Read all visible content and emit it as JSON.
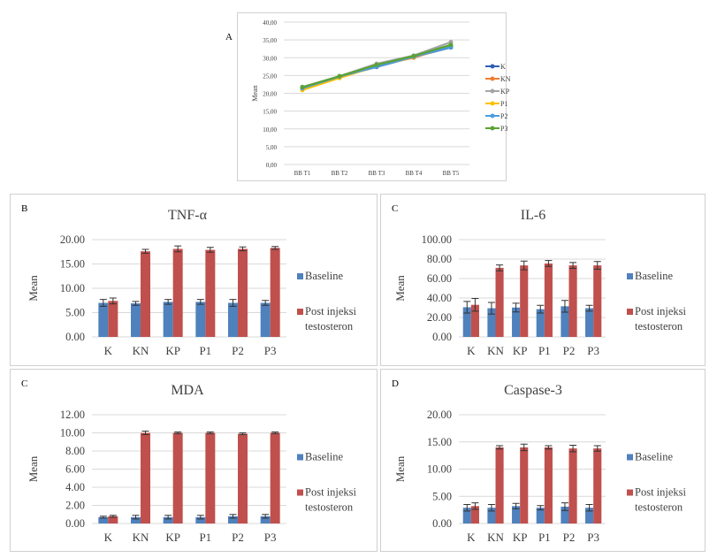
{
  "panel_labels": {
    "a": "A",
    "b": "B",
    "c": "C",
    "c2": "C",
    "d": "D"
  },
  "chart_data": [
    {
      "id": "A",
      "type": "line",
      "title": "",
      "xlabel": "",
      "ylabel": "Mean",
      "categories": [
        "BB T1",
        "BB T2",
        "BB T3",
        "BB T4",
        "BB T5"
      ],
      "ylim": [
        0,
        40
      ],
      "yticks": [
        "0,00",
        "5,00",
        "10,00",
        "15,00",
        "20,00",
        "25,00",
        "30,00",
        "35,00",
        "40,00"
      ],
      "grid": true,
      "legend": "right",
      "series": [
        {
          "name": "K",
          "color": "#2f5fb3",
          "values": [
            21.3,
            24.6,
            27.4,
            30.2,
            32.9
          ]
        },
        {
          "name": "KN",
          "color": "#ed7d31",
          "values": [
            21.5,
            24.5,
            27.8,
            30.0,
            33.3
          ]
        },
        {
          "name": "KP",
          "color": "#a5a5a5",
          "values": [
            21.8,
            24.8,
            28.3,
            30.6,
            34.4
          ]
        },
        {
          "name": "P1",
          "color": "#ffc000",
          "values": [
            20.9,
            24.3,
            27.6,
            30.2,
            33.5
          ]
        },
        {
          "name": "P2",
          "color": "#4a9de0",
          "values": [
            21.4,
            24.7,
            27.5,
            30.3,
            33.0
          ]
        },
        {
          "name": "P3",
          "color": "#5ba333",
          "values": [
            21.7,
            24.8,
            28.0,
            30.5,
            33.6
          ]
        }
      ]
    },
    {
      "id": "B",
      "type": "bar",
      "title": "TNF-α",
      "ylabel": "Mean",
      "categories": [
        "K",
        "KN",
        "KP",
        "P1",
        "P2",
        "P3"
      ],
      "ylim": [
        0,
        20
      ],
      "yticks": [
        "0.00",
        "5.00",
        "10.00",
        "15.00",
        "20.00"
      ],
      "legend": "right",
      "series": [
        {
          "name": "Baseline",
          "color": "#4f81bd",
          "values": [
            7.0,
            6.9,
            7.2,
            7.2,
            7.0,
            7.0
          ],
          "errors": [
            0.7,
            0.4,
            0.5,
            0.5,
            0.7,
            0.5
          ]
        },
        {
          "name": "Post injeksi testosteron",
          "color": "#c0504d",
          "values": [
            7.4,
            17.6,
            18.1,
            17.9,
            18.1,
            18.3
          ],
          "errors": [
            0.6,
            0.4,
            0.6,
            0.5,
            0.4,
            0.3
          ]
        }
      ]
    },
    {
      "id": "C",
      "type": "bar",
      "title": "IL-6",
      "ylabel": "Mean",
      "categories": [
        "K",
        "KN",
        "KP",
        "P1",
        "P2",
        "P3"
      ],
      "ylim": [
        0,
        100
      ],
      "yticks": [
        "0.00",
        "20.00",
        "40.00",
        "60.00",
        "80.00",
        "100.00"
      ],
      "legend": "right",
      "series": [
        {
          "name": "Baseline",
          "color": "#4f81bd",
          "values": [
            30.5,
            29.5,
            30.2,
            28.5,
            31.5,
            29.5
          ],
          "errors": [
            6,
            6,
            4.5,
            4,
            6,
            3
          ]
        },
        {
          "name": "Post injeksi testosteron",
          "color": "#c0504d",
          "values": [
            33,
            71,
            73.5,
            75.5,
            73.5,
            73.5
          ],
          "errors": [
            6.5,
            3,
            4.5,
            3,
            3,
            4
          ]
        }
      ]
    },
    {
      "id": "MDA",
      "type": "bar",
      "title": "MDA",
      "ylabel": "Mean",
      "categories": [
        "K",
        "KN",
        "KP",
        "P1",
        "P2",
        "P3"
      ],
      "ylim": [
        0,
        12
      ],
      "yticks": [
        "0.00",
        "2.00",
        "4.00",
        "6.00",
        "8.00",
        "10.00",
        "12.00"
      ],
      "legend": "right",
      "series": [
        {
          "name": "Baseline",
          "color": "#4f81bd",
          "values": [
            0.7,
            0.7,
            0.7,
            0.7,
            0.8,
            0.8
          ],
          "errors": [
            0.1,
            0.2,
            0.2,
            0.2,
            0.2,
            0.2
          ]
        },
        {
          "name": "Post injeksi testosteron",
          "color": "#c0504d",
          "values": [
            0.8,
            10.0,
            10.0,
            10.0,
            9.9,
            10.0
          ],
          "errors": [
            0.1,
            0.2,
            0.1,
            0.1,
            0.1,
            0.1
          ]
        }
      ]
    },
    {
      "id": "D",
      "type": "bar",
      "title": "Caspase-3",
      "ylabel": "Mean",
      "categories": [
        "K",
        "KN",
        "KP",
        "P1",
        "P2",
        "P3"
      ],
      "ylim": [
        0,
        20
      ],
      "yticks": [
        "0.00",
        "5.00",
        "10.00",
        "15.00",
        "20.00"
      ],
      "legend": "right",
      "series": [
        {
          "name": "Baseline",
          "color": "#4f81bd",
          "values": [
            2.9,
            2.9,
            3.2,
            2.9,
            3.1,
            2.9
          ],
          "errors": [
            0.6,
            0.6,
            0.5,
            0.4,
            0.7,
            0.6
          ]
        },
        {
          "name": "Post injeksi testosteron",
          "color": "#c0504d",
          "values": [
            3.2,
            14.0,
            14.0,
            14.0,
            13.8,
            13.8
          ],
          "errors": [
            0.6,
            0.3,
            0.6,
            0.3,
            0.6,
            0.5
          ]
        }
      ]
    }
  ]
}
